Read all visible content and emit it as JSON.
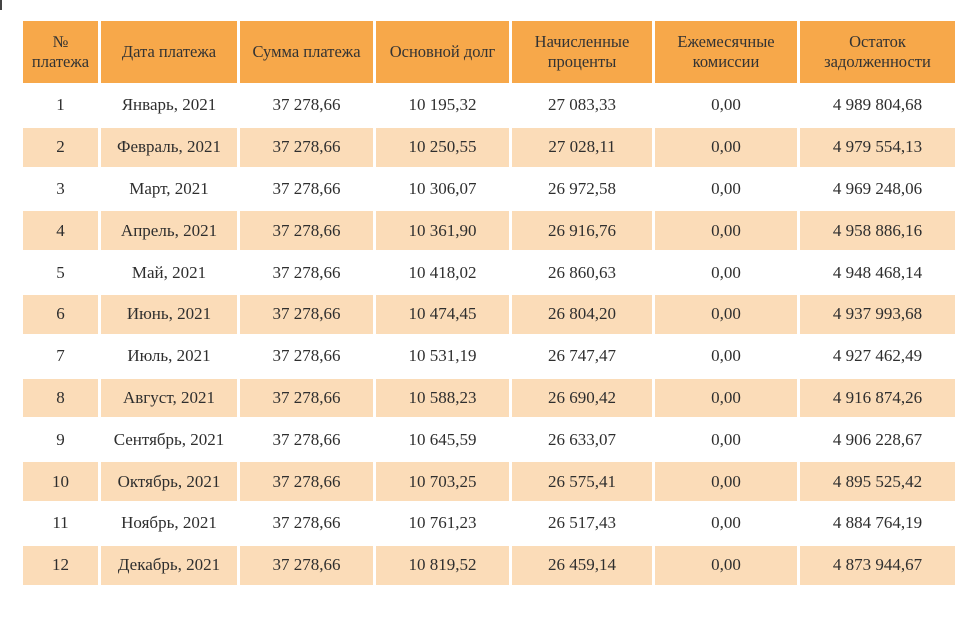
{
  "headers": [
    "№ платежа",
    "Дата платежа",
    "Сумма платежа",
    "Основной долг",
    "Начисленные проценты",
    "Ежемесячные комиссии",
    "Остаток задолженности"
  ],
  "rows": [
    [
      "1",
      "Январь, 2021",
      "37 278,66",
      "10 195,32",
      "27 083,33",
      "0,00",
      "4 989 804,68"
    ],
    [
      "2",
      "Февраль, 2021",
      "37 278,66",
      "10 250,55",
      "27 028,11",
      "0,00",
      "4 979 554,13"
    ],
    [
      "3",
      "Март, 2021",
      "37 278,66",
      "10 306,07",
      "26 972,58",
      "0,00",
      "4 969 248,06"
    ],
    [
      "4",
      "Апрель, 2021",
      "37 278,66",
      "10 361,90",
      "26 916,76",
      "0,00",
      "4 958 886,16"
    ],
    [
      "5",
      "Май, 2021",
      "37 278,66",
      "10 418,02",
      "26 860,63",
      "0,00",
      "4 948 468,14"
    ],
    [
      "6",
      "Июнь, 2021",
      "37 278,66",
      "10 474,45",
      "26 804,20",
      "0,00",
      "4 937 993,68"
    ],
    [
      "7",
      "Июль, 2021",
      "37 278,66",
      "10 531,19",
      "26 747,47",
      "0,00",
      "4 927 462,49"
    ],
    [
      "8",
      "Август, 2021",
      "37 278,66",
      "10 588,23",
      "26 690,42",
      "0,00",
      "4 916 874,26"
    ],
    [
      "9",
      "Сентябрь, 2021",
      "37 278,66",
      "10 645,59",
      "26 633,07",
      "0,00",
      "4 906 228,67"
    ],
    [
      "10",
      "Октябрь, 2021",
      "37 278,66",
      "10 703,25",
      "26 575,41",
      "0,00",
      "4 895 525,42"
    ],
    [
      "11",
      "Ноябрь, 2021",
      "37 278,66",
      "10 761,23",
      "26 517,43",
      "0,00",
      "4 884 764,19"
    ],
    [
      "12",
      "Декабрь, 2021",
      "37 278,66",
      "10 819,52",
      "26 459,14",
      "0,00",
      "4 873 944,67"
    ]
  ],
  "colors": {
    "header_bg": "#f7a84a",
    "stripe_bg": "#fbdcb8"
  }
}
